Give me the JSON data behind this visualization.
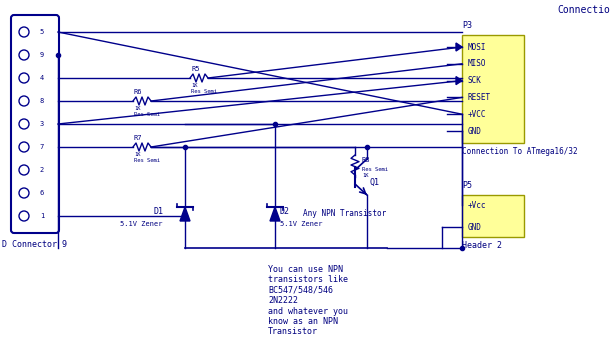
{
  "title": "Connectio",
  "bg_color": "#ffffff",
  "blue": "#00008B",
  "text_color": "#000080",
  "yellow_box": "#FFFF99",
  "yellow_border": "#999900",
  "connector_label": "D Connector 9",
  "pin_labels": [
    "5",
    "9",
    "4",
    "8",
    "3",
    "7",
    "2",
    "6",
    "1"
  ],
  "p3_pins": [
    "MOSI",
    "MISO",
    "SCK",
    "RESET",
    "+VCC",
    "GND"
  ],
  "p3_label": "P3",
  "p3_sublabel": "Connection To ATmega16/32",
  "p5_pins": [
    "+Vcc",
    "GND"
  ],
  "p5_label": "P5",
  "p5_sublabel": "Header 2",
  "note": "You can use NPN\ntransistors like\nBC547/548/546\n2N2222\nand whatever you\nknow as an NPN\nTransistor"
}
